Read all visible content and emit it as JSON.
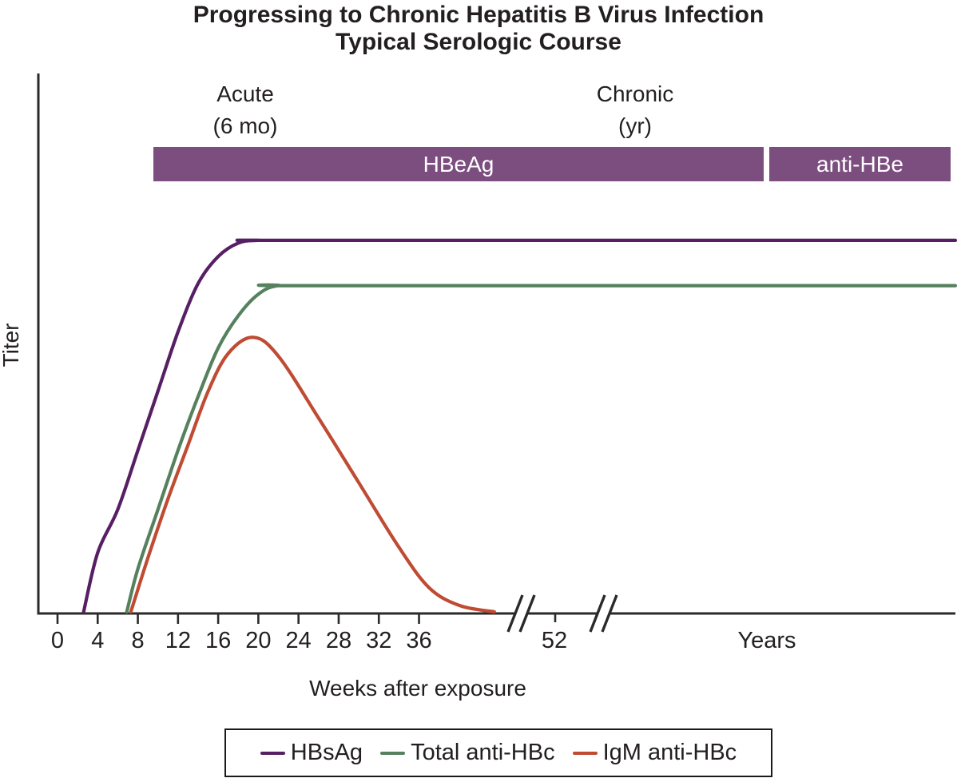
{
  "title": {
    "line1": "Progressing to Chronic Hepatitis B Virus Infection",
    "line2": "Typical Serologic Course"
  },
  "phases": [
    {
      "line1": "Acute",
      "line2": "(6 mo)"
    },
    {
      "line1": "Chronic",
      "line2": "(yr)"
    }
  ],
  "bars": [
    {
      "label": "HBeAg",
      "color": "#7C4E80"
    },
    {
      "label": "anti-HBe",
      "color": "#7C4E80"
    }
  ],
  "legend": {
    "items": [
      {
        "label": "HBsAg",
        "color": "#571F63"
      },
      {
        "label": "Total anti-HBc",
        "color": "#55815E"
      },
      {
        "label": "IgM anti-HBc",
        "color": "#BF4B33"
      }
    ]
  },
  "colors": {
    "axis": "#2B2A2B",
    "text": "#231F20",
    "bar_text": "#FFFFFF"
  },
  "chart_data": {
    "type": "line",
    "title": "Progressing to Chronic Hepatitis B Virus Infection — Typical Serologic Course",
    "xlabel": "Weeks after exposure",
    "ylabel": "Titer",
    "grid": false,
    "legend_position": "bottom",
    "x_axis": {
      "tick_weeks": [
        0,
        4,
        8,
        12,
        16,
        20,
        24,
        28,
        32,
        36
      ],
      "post_break_tick": "52",
      "far_label": "Years",
      "breaks": 2,
      "note": "axis broken twice after week ~38; scale changes from weeks to years"
    },
    "y_axis": {
      "label": "Titer",
      "scale": "relative titer 0–100, no tick labels"
    },
    "series": [
      {
        "name": "HBsAg",
        "color": "#571F63",
        "extends_to_right_edge": true,
        "points": [
          [
            2.6,
            0
          ],
          [
            4,
            11
          ],
          [
            6,
            19
          ],
          [
            8,
            30
          ],
          [
            10,
            41
          ],
          [
            12,
            52
          ],
          [
            14,
            61
          ],
          [
            16,
            66
          ],
          [
            18,
            68.5
          ],
          [
            20,
            69
          ],
          [
            24,
            69
          ]
        ]
      },
      {
        "name": "Total anti-HBc",
        "color": "#55815E",
        "extends_to_right_edge": true,
        "points": [
          [
            6.9,
            0
          ],
          [
            8,
            8
          ],
          [
            10,
            19
          ],
          [
            12,
            30
          ],
          [
            14,
            40
          ],
          [
            16,
            49
          ],
          [
            18,
            55
          ],
          [
            20,
            59
          ],
          [
            22,
            60.6
          ],
          [
            26,
            60.6
          ]
        ]
      },
      {
        "name": "IgM anti-HBc",
        "color": "#BF4B33",
        "extends_to_right_edge": false,
        "points": [
          [
            7.3,
            0
          ],
          [
            9,
            10
          ],
          [
            11,
            21
          ],
          [
            13,
            31
          ],
          [
            15,
            41
          ],
          [
            17,
            48
          ],
          [
            19.5,
            51
          ],
          [
            22,
            47.5
          ],
          [
            26,
            36
          ],
          [
            30,
            24
          ],
          [
            34,
            12
          ],
          [
            37,
            4.5
          ],
          [
            40,
            1.2
          ],
          [
            43.5,
            0
          ]
        ]
      }
    ]
  }
}
